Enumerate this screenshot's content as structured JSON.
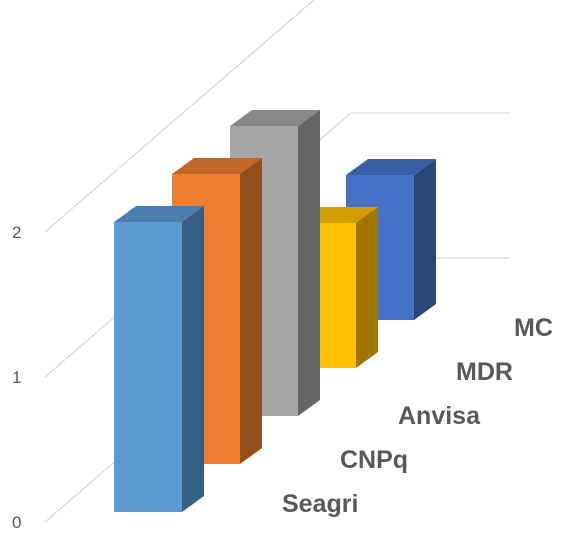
{
  "chart_data": {
    "type": "bar",
    "style": "3d-column",
    "categories": [
      "Seagri",
      "CNPq",
      "Anvisa",
      "MDR",
      "MC"
    ],
    "values": [
      2,
      2,
      2,
      1,
      1
    ],
    "ylim": [
      0,
      2
    ],
    "yticks": [
      0,
      1,
      2
    ],
    "grid": true,
    "legend": "none",
    "colors": {
      "Seagri": "#5b9bd5",
      "CNPq": "#ed7d31",
      "Anvisa": "#a5a5a5",
      "MDR": "#ffc000",
      "MC": "#4472c4"
    }
  }
}
